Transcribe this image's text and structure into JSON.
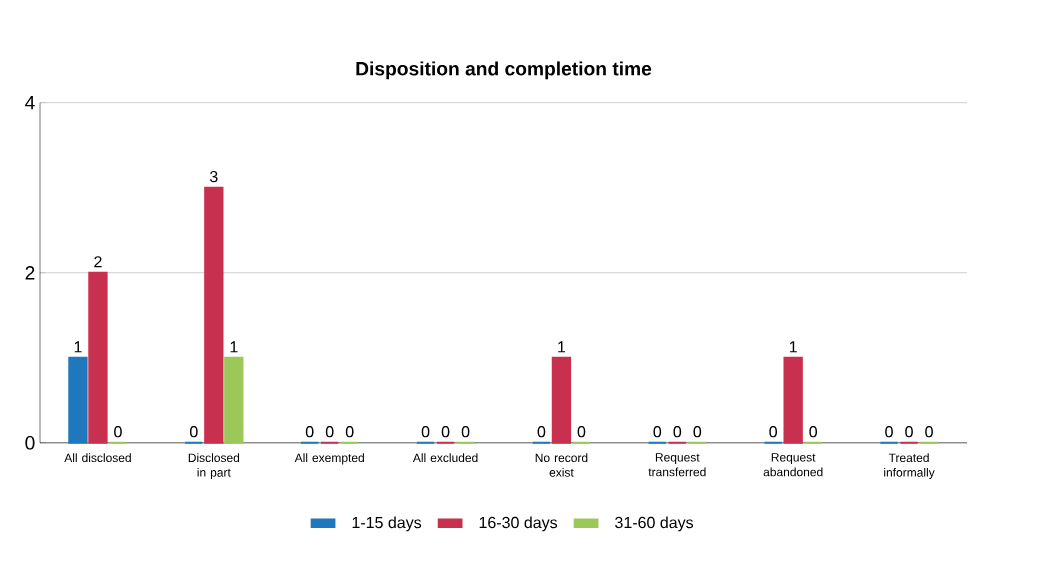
{
  "chart_data": {
    "type": "bar",
    "title": "Disposition and completion time",
    "categories": [
      "All disclosed",
      "Disclosed in part",
      "All exempted",
      "All excluded",
      "No record exist",
      "Request transferred",
      "Request abandoned",
      "Treated informally"
    ],
    "series": [
      {
        "name": "1-15 days",
        "color": "#1f78bd",
        "values": [
          1,
          0,
          0,
          0,
          0,
          0,
          0,
          0
        ]
      },
      {
        "name": "16-30 days",
        "color": "#c8304f",
        "values": [
          2,
          3,
          0,
          0,
          1,
          0,
          1,
          0
        ]
      },
      {
        "name": "31-60 days",
        "color": "#9cc85a",
        "values": [
          0,
          1,
          0,
          0,
          0,
          0,
          0,
          0
        ]
      }
    ],
    "ylim": [
      0,
      4
    ],
    "yticks": [
      0,
      2,
      4
    ],
    "grid": "y",
    "legend": "bottom",
    "data_labels": true
  }
}
